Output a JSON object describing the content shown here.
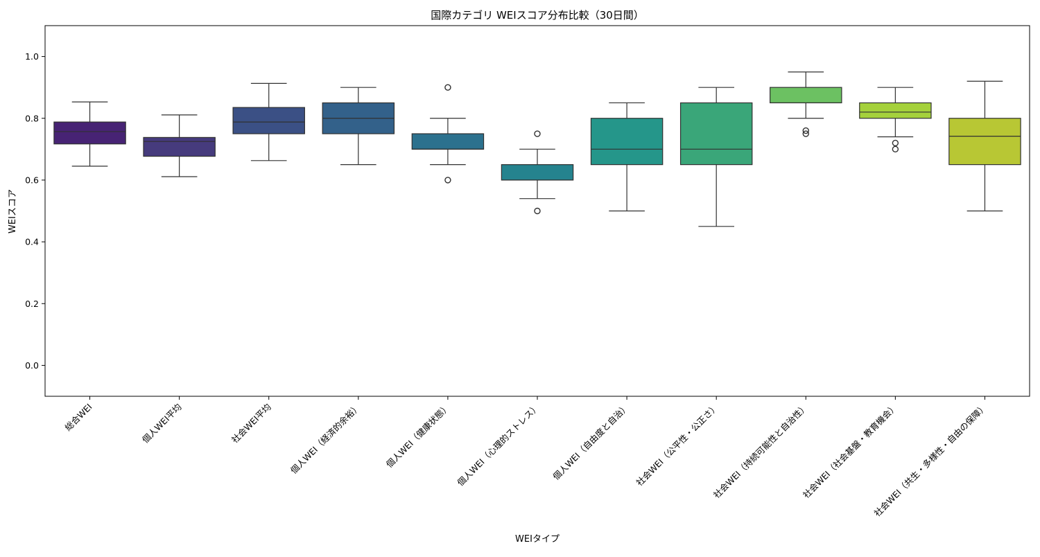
{
  "chart_data": {
    "type": "box",
    "title": "国際カテゴリ WEIスコア分布比較（30日間）",
    "xlabel": "WEIタイプ",
    "ylabel": "WEIスコア",
    "ylim": [
      -0.1,
      1.1
    ],
    "yticks": [
      0.0,
      0.2,
      0.4,
      0.6,
      0.8,
      1.0
    ],
    "ytick_labels": [
      "0.0",
      "0.2",
      "0.4",
      "0.6",
      "0.8",
      "1.0"
    ],
    "grid": false,
    "legend": "none",
    "categories": [
      "総合WEI",
      "個人WEI平均",
      "社会WEI平均",
      "個人WEI（経済的余裕）",
      "個人WEI（健康状態）",
      "個人WEI（心理的ストレス）",
      "個人WEI（自由度と自治）",
      "社会WEI（公平性・公正さ）",
      "社会WEI（持続可能性と自治性）",
      "社会WEI（社会基盤・教育機会）",
      "社会WEI（共生・多様性・自由の保障）"
    ],
    "boxes": [
      {
        "whisker_low": 0.645,
        "q1": 0.717,
        "median": 0.757,
        "q3": 0.788,
        "whisker_high": 0.853,
        "outliers": []
      },
      {
        "whisker_low": 0.611,
        "q1": 0.677,
        "median": 0.725,
        "q3": 0.738,
        "whisker_high": 0.811,
        "outliers": []
      },
      {
        "whisker_low": 0.663,
        "q1": 0.75,
        "median": 0.788,
        "q3": 0.835,
        "whisker_high": 0.913,
        "outliers": []
      },
      {
        "whisker_low": 0.65,
        "q1": 0.75,
        "median": 0.8,
        "q3": 0.85,
        "whisker_high": 0.9,
        "outliers": []
      },
      {
        "whisker_low": 0.65,
        "q1": 0.7,
        "median": 0.7,
        "q3": 0.75,
        "whisker_high": 0.8,
        "outliers": [
          0.9,
          0.6
        ]
      },
      {
        "whisker_low": 0.54,
        "q1": 0.6,
        "median": 0.6,
        "q3": 0.65,
        "whisker_high": 0.7,
        "outliers": [
          0.75,
          0.5
        ]
      },
      {
        "whisker_low": 0.5,
        "q1": 0.65,
        "median": 0.7,
        "q3": 0.8,
        "whisker_high": 0.85,
        "outliers": []
      },
      {
        "whisker_low": 0.45,
        "q1": 0.65,
        "median": 0.7,
        "q3": 0.85,
        "whisker_high": 0.9,
        "outliers": []
      },
      {
        "whisker_low": 0.8,
        "q1": 0.85,
        "median": 0.85,
        "q3": 0.9,
        "whisker_high": 0.95,
        "outliers": [
          0.76,
          0.75
        ]
      },
      {
        "whisker_low": 0.74,
        "q1": 0.8,
        "median": 0.82,
        "q3": 0.85,
        "whisker_high": 0.9,
        "outliers": [
          0.72,
          0.7
        ]
      },
      {
        "whisker_low": 0.5,
        "q1": 0.65,
        "median": 0.742,
        "q3": 0.8,
        "whisker_high": 0.92,
        "outliers": []
      }
    ],
    "colors": [
      "#472374",
      "#463b7d",
      "#3b5085",
      "#33618a",
      "#2c718e",
      "#25838e",
      "#25968a",
      "#3aa679",
      "#6cc162",
      "#a5d13c",
      "#b8c734"
    ],
    "edge_color": "#303030"
  }
}
